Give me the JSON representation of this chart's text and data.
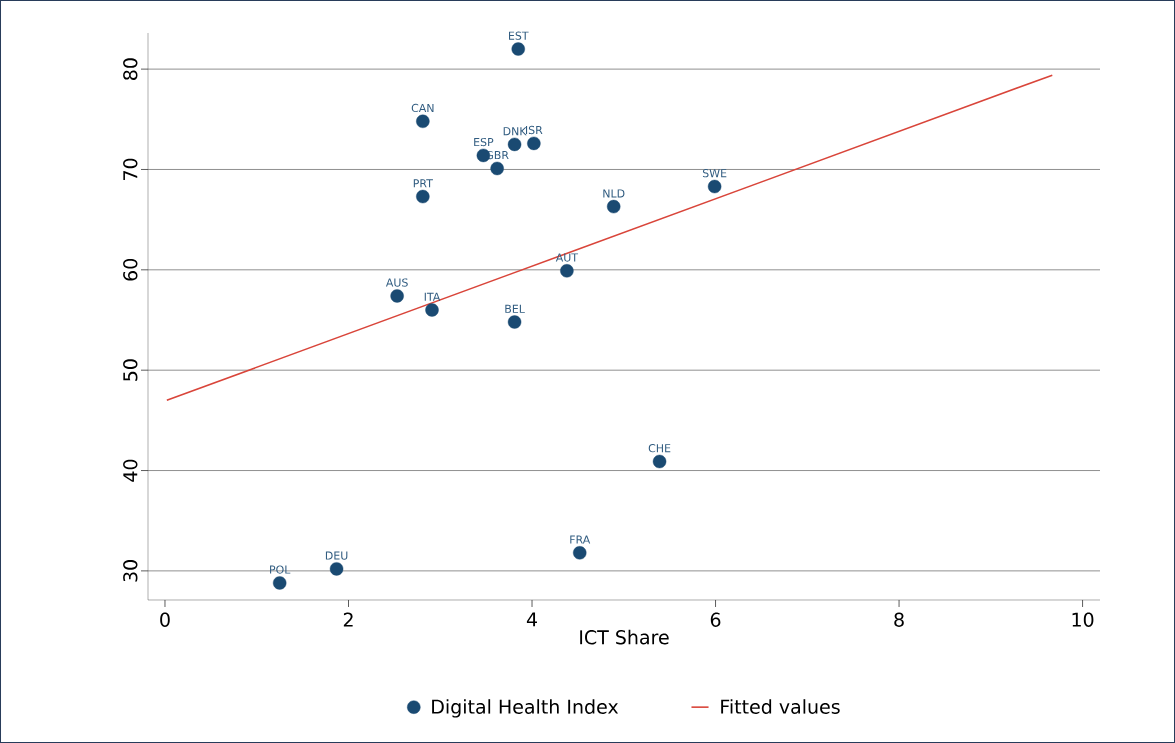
{
  "chart_data": {
    "type": "scatter",
    "xlabel": "ICT Share",
    "xlim": [
      -0.185,
      10.19
    ],
    "ylim": [
      27.1,
      83.6
    ],
    "xticks": [
      0,
      2,
      4,
      6,
      8,
      10
    ],
    "yticks": [
      30,
      40,
      50,
      60,
      70,
      80
    ],
    "grid": "y",
    "legend": "bottom",
    "line_style": "solid",
    "series": [
      {
        "name": "Digital Health Index",
        "marker": "circle",
        "color": "#1a4a72",
        "x": [
          3.85,
          2.81,
          3.47,
          3.81,
          4.02,
          3.62,
          2.81,
          4.89,
          5.99,
          4.38,
          2.53,
          2.91,
          3.81,
          5.39,
          4.52,
          1.87,
          1.25
        ],
        "values": [
          82.0,
          74.8,
          71.4,
          72.5,
          72.6,
          70.1,
          67.3,
          66.3,
          68.3,
          59.9,
          57.4,
          56.0,
          54.8,
          40.9,
          31.8,
          30.2,
          28.8
        ]
      },
      {
        "name": "Fitted values",
        "type": "line",
        "marker": "none",
        "color": "#d9453a",
        "x": [
          0.02,
          9.67
        ],
        "values": [
          47.0,
          79.4
        ]
      }
    ],
    "annotations": [
      {
        "text": "EST",
        "x": 3.85,
        "y": 82.0
      },
      {
        "text": "CAN",
        "x": 2.81,
        "y": 74.8
      },
      {
        "text": "ESP",
        "x": 3.47,
        "y": 71.4
      },
      {
        "text": "DNK",
        "x": 3.81,
        "y": 72.5
      },
      {
        "text": "ISR",
        "x": 4.02,
        "y": 72.6
      },
      {
        "text": "GBR",
        "x": 3.62,
        "y": 70.1
      },
      {
        "text": "PRT",
        "x": 2.81,
        "y": 67.3
      },
      {
        "text": "NLD",
        "x": 4.89,
        "y": 66.3
      },
      {
        "text": "SWE",
        "x": 5.99,
        "y": 68.3
      },
      {
        "text": "AUT",
        "x": 4.38,
        "y": 59.9
      },
      {
        "text": "AUS",
        "x": 2.53,
        "y": 57.4
      },
      {
        "text": "ITA",
        "x": 2.91,
        "y": 56.0
      },
      {
        "text": "BEL",
        "x": 3.81,
        "y": 54.8
      },
      {
        "text": "CHE",
        "x": 5.39,
        "y": 40.9
      },
      {
        "text": "FRA",
        "x": 4.52,
        "y": 31.8
      },
      {
        "text": "DEU",
        "x": 1.87,
        "y": 30.2
      },
      {
        "text": "POL",
        "x": 1.25,
        "y": 28.8
      }
    ]
  }
}
